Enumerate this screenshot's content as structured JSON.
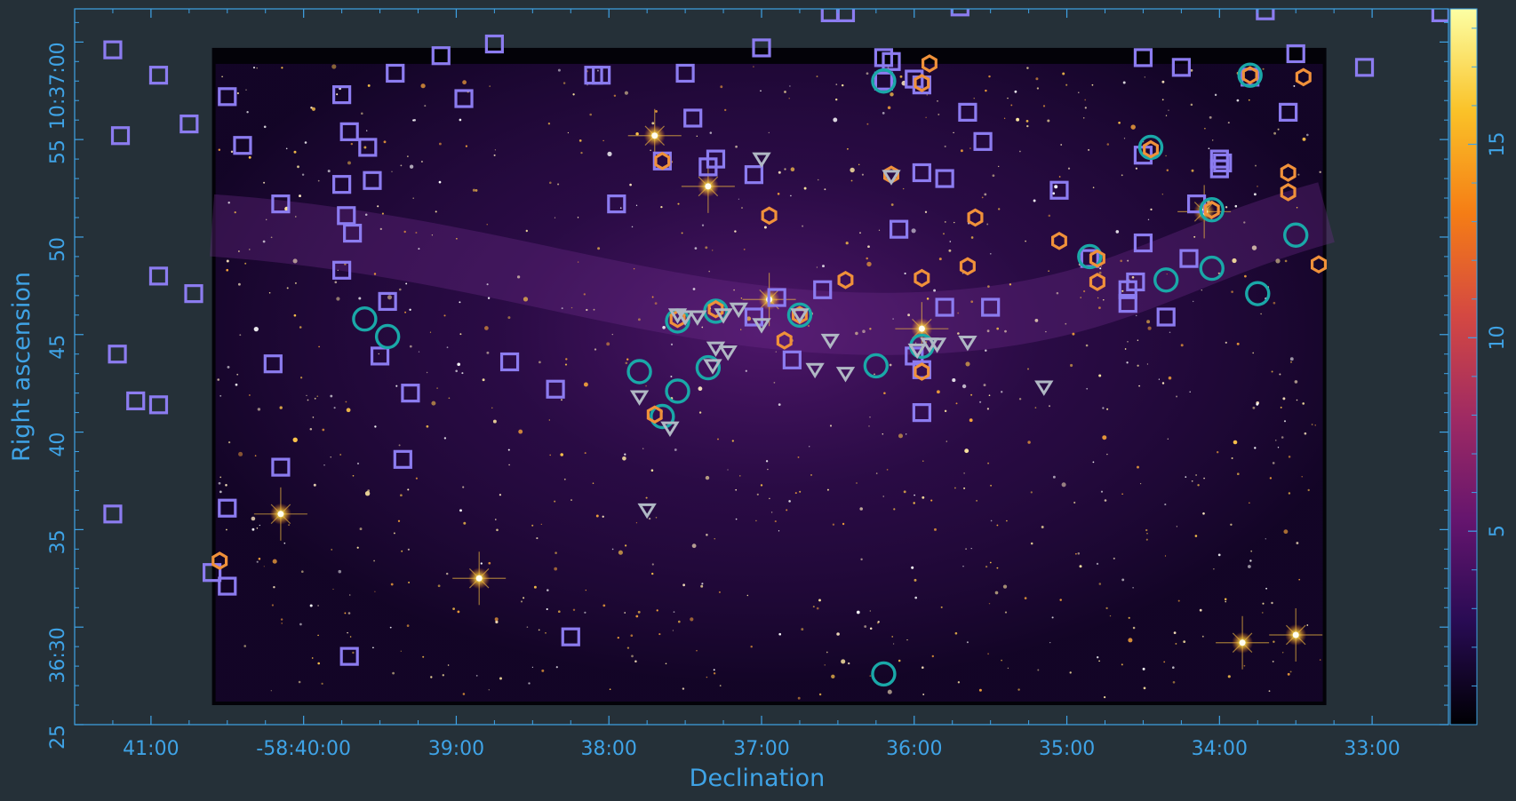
{
  "chart_data": {
    "type": "scatter",
    "xlabel": "Declination",
    "ylabel": "Right ascension",
    "x_axis": {
      "ticks": [
        {
          "value": 41.0,
          "label": "41:00"
        },
        {
          "value": 40.0,
          "label": "-58:40:00"
        },
        {
          "value": 39.0,
          "label": "39:00"
        },
        {
          "value": 38.0,
          "label": "38:00"
        },
        {
          "value": 37.0,
          "label": "37:00"
        },
        {
          "value": 36.0,
          "label": "36:00"
        },
        {
          "value": 35.0,
          "label": "35:00"
        },
        {
          "value": 34.0,
          "label": "34:00"
        },
        {
          "value": 33.0,
          "label": "33:00"
        }
      ],
      "range": [
        41.5,
        32.5
      ]
    },
    "y_axis": {
      "ticks": [
        {
          "value": 25,
          "label": "25"
        },
        {
          "value": 30,
          "label": "36:30"
        },
        {
          "value": 35,
          "label": "35"
        },
        {
          "value": 40,
          "label": "40"
        },
        {
          "value": 45,
          "label": "45"
        },
        {
          "value": 50,
          "label": "50"
        },
        {
          "value": 55,
          "label": "55"
        },
        {
          "value": 60,
          "label": "10:37:00"
        }
      ],
      "range": [
        25,
        61.7
      ]
    },
    "colorbar": {
      "range": [
        0,
        18.5
      ],
      "ticks": [
        {
          "value": 5,
          "label": "5"
        },
        {
          "value": 10,
          "label": "10"
        },
        {
          "value": 15,
          "label": "15"
        }
      ],
      "colormap": [
        "#000004",
        "#280b53",
        "#65156e",
        "#9f2a63",
        "#d44842",
        "#f57d15",
        "#fac228",
        "#fcffa4"
      ]
    },
    "image_extent": {
      "x": [
        40.6,
        33.3
      ],
      "y": [
        26.0,
        59.7
      ]
    },
    "colors": {
      "square": "#8c7cf0",
      "circle": "#1aa8a8",
      "hexagon": "#f0913a",
      "triangle": "#b0b8c4",
      "axis": "#3fa3e6",
      "background": "#253038"
    },
    "series": [
      {
        "marker": "square",
        "points": [
          [
            41.25,
            59.6
          ],
          [
            41.2,
            55.2
          ],
          [
            40.95,
            58.3
          ],
          [
            40.75,
            55.8
          ],
          [
            40.95,
            48.0
          ],
          [
            41.1,
            41.6
          ],
          [
            41.22,
            44.0
          ],
          [
            41.25,
            35.8
          ],
          [
            40.72,
            47.1
          ],
          [
            40.95,
            41.4
          ],
          [
            40.5,
            57.2
          ],
          [
            40.4,
            54.7
          ],
          [
            40.5,
            36.1
          ],
          [
            40.6,
            32.8
          ],
          [
            40.5,
            32.1
          ],
          [
            39.75,
            57.3
          ],
          [
            39.7,
            55.4
          ],
          [
            39.58,
            54.6
          ],
          [
            39.55,
            52.9
          ],
          [
            39.75,
            52.7
          ],
          [
            39.72,
            51.1
          ],
          [
            39.68,
            50.2
          ],
          [
            39.75,
            48.3
          ],
          [
            39.45,
            46.7
          ],
          [
            39.5,
            43.9
          ],
          [
            39.1,
            59.3
          ],
          [
            39.4,
            58.4
          ],
          [
            38.75,
            59.9
          ],
          [
            38.95,
            57.1
          ],
          [
            40.15,
            51.7
          ],
          [
            40.2,
            43.5
          ],
          [
            40.15,
            38.2
          ],
          [
            39.7,
            28.5
          ],
          [
            39.35,
            38.6
          ],
          [
            39.3,
            42.0
          ],
          [
            38.65,
            43.6
          ],
          [
            38.35,
            42.2
          ],
          [
            38.25,
            29.5
          ],
          [
            38.1,
            58.3
          ],
          [
            38.05,
            58.3
          ],
          [
            37.95,
            51.7
          ],
          [
            37.65,
            53.9
          ],
          [
            37.5,
            58.4
          ],
          [
            37.45,
            56.1
          ],
          [
            37.35,
            53.6
          ],
          [
            37.3,
            54.0
          ],
          [
            37.05,
            53.2
          ],
          [
            37.0,
            59.7
          ],
          [
            36.9,
            46.9
          ],
          [
            37.05,
            45.9
          ],
          [
            36.8,
            43.7
          ],
          [
            36.6,
            47.3
          ],
          [
            36.2,
            59.2
          ],
          [
            36.15,
            59.0
          ],
          [
            36.2,
            58.0
          ],
          [
            36.0,
            58.1
          ],
          [
            35.95,
            57.8
          ],
          [
            36.1,
            50.4
          ],
          [
            35.95,
            53.3
          ],
          [
            35.8,
            53.0
          ],
          [
            35.95,
            41.0
          ],
          [
            36.0,
            43.9
          ],
          [
            35.95,
            43.2
          ],
          [
            35.8,
            46.4
          ],
          [
            35.5,
            46.4
          ],
          [
            35.55,
            54.9
          ],
          [
            35.65,
            56.4
          ],
          [
            35.05,
            52.4
          ],
          [
            34.85,
            48.9
          ],
          [
            34.6,
            47.3
          ],
          [
            34.6,
            46.6
          ],
          [
            34.55,
            47.7
          ],
          [
            34.5,
            49.7
          ],
          [
            34.5,
            54.2
          ],
          [
            34.5,
            59.2
          ],
          [
            34.35,
            45.9
          ],
          [
            34.15,
            51.7
          ],
          [
            34.2,
            48.9
          ],
          [
            34.25,
            58.7
          ],
          [
            34.0,
            54.0
          ],
          [
            33.98,
            53.8
          ],
          [
            34.0,
            53.5
          ],
          [
            33.8,
            58.2
          ],
          [
            33.55,
            56.4
          ],
          [
            33.5,
            59.4
          ],
          [
            33.05,
            58.7
          ],
          [
            36.55,
            61.5
          ],
          [
            36.45,
            61.5
          ],
          [
            35.7,
            61.8
          ],
          [
            33.7,
            61.6
          ],
          [
            32.55,
            61.5
          ]
        ]
      },
      {
        "marker": "circle",
        "points": [
          [
            39.6,
            45.8
          ],
          [
            39.45,
            44.9
          ],
          [
            37.8,
            43.1
          ],
          [
            37.55,
            45.7
          ],
          [
            37.65,
            40.8
          ],
          [
            37.55,
            42.1
          ],
          [
            37.35,
            43.3
          ],
          [
            37.3,
            46.2
          ],
          [
            36.75,
            46.0
          ],
          [
            36.25,
            43.4
          ],
          [
            36.2,
            58.0
          ],
          [
            35.95,
            44.4
          ],
          [
            36.2,
            27.6
          ],
          [
            34.85,
            49.0
          ],
          [
            34.45,
            54.6
          ],
          [
            34.35,
            47.8
          ],
          [
            34.05,
            51.4
          ],
          [
            34.05,
            48.4
          ],
          [
            33.8,
            58.3
          ],
          [
            33.75,
            47.1
          ],
          [
            33.5,
            50.1
          ]
        ]
      },
      {
        "marker": "hexagon",
        "points": [
          [
            40.55,
            33.4
          ],
          [
            37.65,
            53.9
          ],
          [
            37.55,
            45.8
          ],
          [
            37.3,
            46.3
          ],
          [
            36.95,
            51.1
          ],
          [
            36.85,
            44.7
          ],
          [
            36.75,
            46.0
          ],
          [
            36.45,
            47.8
          ],
          [
            36.15,
            53.2
          ],
          [
            35.95,
            57.9
          ],
          [
            35.9,
            58.9
          ],
          [
            35.95,
            47.9
          ],
          [
            35.6,
            51.0
          ],
          [
            35.65,
            48.5
          ],
          [
            35.05,
            49.8
          ],
          [
            34.8,
            47.7
          ],
          [
            34.8,
            48.9
          ],
          [
            34.45,
            54.5
          ],
          [
            33.8,
            58.3
          ],
          [
            33.55,
            53.3
          ],
          [
            33.55,
            52.3
          ],
          [
            33.45,
            58.2
          ],
          [
            33.35,
            48.6
          ],
          [
            34.05,
            51.4
          ],
          [
            37.7,
            40.9
          ],
          [
            35.95,
            43.1
          ]
        ]
      },
      {
        "marker": "triangle",
        "points": [
          [
            37.8,
            41.8
          ],
          [
            37.6,
            40.2
          ],
          [
            37.75,
            36.0
          ],
          [
            37.5,
            45.9
          ],
          [
            37.42,
            45.9
          ],
          [
            37.3,
            44.3
          ],
          [
            37.22,
            44.1
          ],
          [
            37.32,
            43.4
          ],
          [
            37.25,
            46.0
          ],
          [
            37.15,
            46.3
          ],
          [
            37.0,
            54.0
          ],
          [
            37.0,
            45.5
          ],
          [
            36.65,
            43.2
          ],
          [
            36.55,
            44.7
          ],
          [
            36.45,
            43.0
          ],
          [
            35.98,
            44.2
          ],
          [
            35.9,
            44.5
          ],
          [
            35.85,
            44.5
          ],
          [
            35.65,
            44.6
          ],
          [
            35.15,
            42.3
          ],
          [
            36.15,
            53.1
          ],
          [
            37.55,
            46.0
          ],
          [
            36.75,
            46.0
          ]
        ]
      }
    ],
    "bright_stars": [
      [
        37.7,
        55.2
      ],
      [
        37.35,
        52.6
      ],
      [
        36.95,
        46.8
      ],
      [
        38.85,
        32.5
      ],
      [
        40.15,
        35.8
      ],
      [
        33.85,
        29.2
      ],
      [
        33.5,
        29.6
      ],
      [
        35.95,
        45.3
      ],
      [
        34.1,
        51.3
      ]
    ]
  }
}
